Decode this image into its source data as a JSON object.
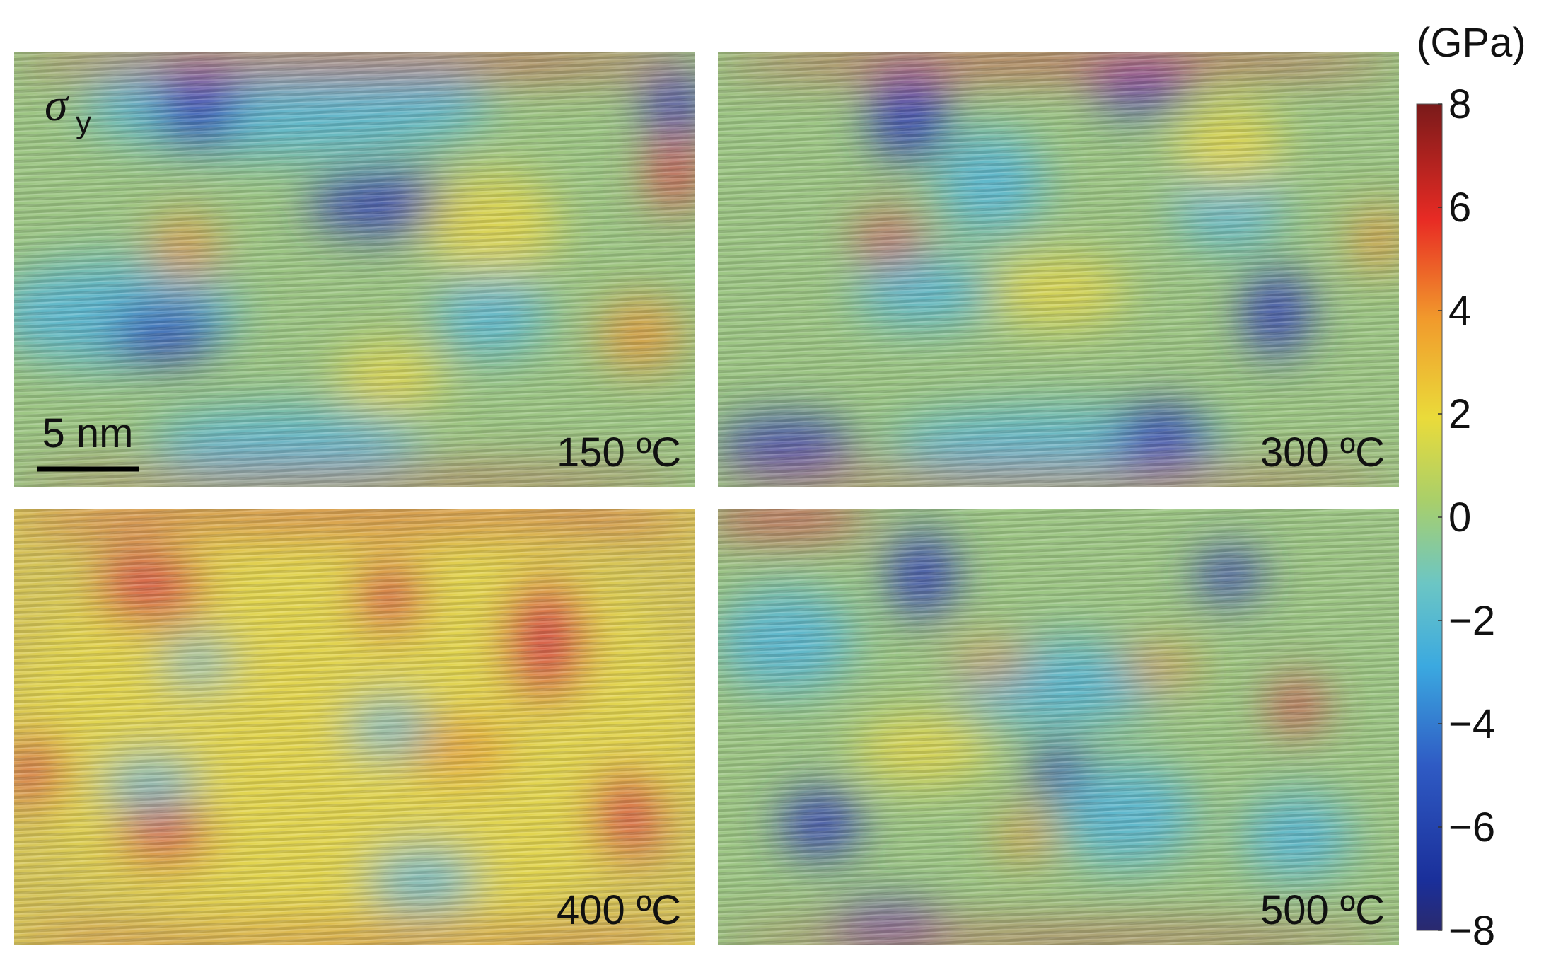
{
  "symbol": "σ",
  "symbol_subscript": "y",
  "scale_bar": "5 nm",
  "panels": [
    {
      "label": "150 ºC"
    },
    {
      "label": "300 ºC"
    },
    {
      "label": "400 ºC"
    },
    {
      "label": "500 ºC"
    }
  ],
  "colorbar": {
    "unit": "(GPa)",
    "lim": [
      -8,
      8
    ],
    "ticks": [
      {
        "value": -8,
        "label": "−8"
      },
      {
        "value": -6,
        "label": "−6"
      },
      {
        "value": -4,
        "label": "−4"
      },
      {
        "value": -2,
        "label": "−2"
      },
      0,
      2,
      4,
      6,
      8
    ]
  }
}
